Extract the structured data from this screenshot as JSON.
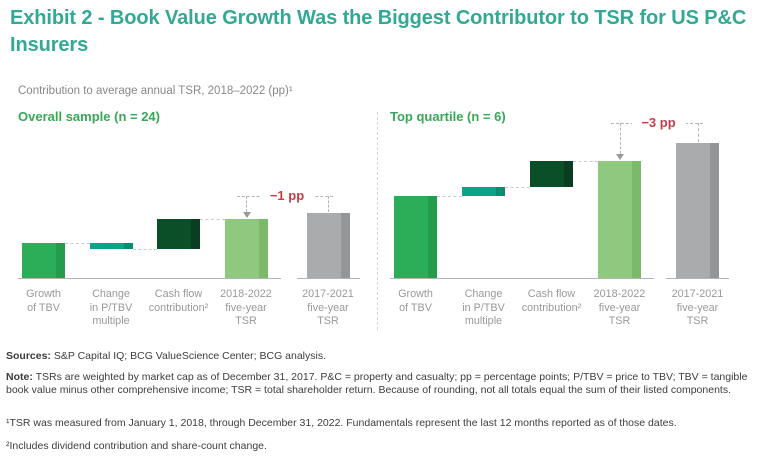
{
  "title": "Exhibit 2 - Book Value Growth Was the Biggest Contributor to TSR for US P&C\nInsurers",
  "subtitle": "Contribution to average annual TSR, 2018–2022 (pp)¹",
  "colors": {
    "title_teal": "#32a895",
    "section_green": "#36a857",
    "subtitle_gray": "#87888a",
    "axis_label_gray": "#98999b",
    "axis_line": "#b3b3b3",
    "connector_gray": "#cccccc",
    "annotation_red": "#c63d47",
    "teal_label": "#089c80",
    "value_label_white": "#ffffff",
    "footnote_gray": "#3d3d3f",
    "bar_styles": {
      "green": {
        "fill": "#2cae58",
        "edge": "#239c4c"
      },
      "teal": {
        "fill": "#0aa488",
        "edge": "#008f72"
      },
      "darkgreen": {
        "fill": "#0b4f28",
        "edge": "#093f21"
      },
      "lightgreen": {
        "fill": "#8fc980",
        "edge": "#7bb96b"
      },
      "gray": {
        "fill": "#a9abad",
        "edge": "#939597"
      }
    }
  },
  "chart_data": [
    {
      "type": "bar",
      "subtype": "waterfall",
      "title": "Overall sample (n = 24)",
      "unit": "pp",
      "ylim": [
        0,
        25
      ],
      "grid": false,
      "legend": "none",
      "categories": [
        "Growth of TBV",
        "Change in P/TBV multiple",
        "Cash flow contribution²",
        "2018-2022 five-year TSR",
        "2017-2021 five-year TSR"
      ],
      "values": [
        6,
        -1,
        5,
        10,
        11
      ],
      "bars": [
        {
          "key": "growth-of-tbv",
          "label_lines": [
            "Growth",
            "of TBV"
          ],
          "value_label": "6",
          "from": 0,
          "to": 6,
          "style": "green",
          "value_pos": "inside"
        },
        {
          "key": "change-in-p-tbv-multiple",
          "label_lines": [
            "Change",
            "in P/TBV",
            "multiple"
          ],
          "value_label": "−1",
          "from": 6,
          "to": 5,
          "style": "teal",
          "value_pos": "below"
        },
        {
          "key": "cash-flow-contribution",
          "label_lines": [
            "Cash flow",
            "contribution²"
          ],
          "value_label": "5",
          "from": 5,
          "to": 10,
          "style": "darkgreen",
          "value_pos": "inside"
        },
        {
          "key": "tsr-2018-2022",
          "label_lines": [
            "2018-2022",
            "five-year",
            "TSR"
          ],
          "value_label": "10",
          "from": 0,
          "to": 10,
          "style": "lightgreen",
          "value_pos": "inside"
        },
        {
          "key": "tsr-2017-2021",
          "label_lines": [
            "2017-2021",
            "five-year",
            "TSR"
          ],
          "value_label": "11",
          "from": 0,
          "to": 11,
          "style": "gray",
          "value_pos": "inside"
        }
      ],
      "annotation": {
        "text": "−1 pp",
        "delta_pp": -1,
        "arrow_bar_index": 3,
        "from_bar_index": 4
      }
    },
    {
      "type": "bar",
      "subtype": "waterfall",
      "title": "Top quartile (n = 6)",
      "unit": "pp",
      "ylim": [
        0,
        25
      ],
      "grid": false,
      "legend": "none",
      "categories": [
        "Growth of TBV",
        "Change in P/TBV multiple",
        "Cash flow contribution²",
        "2018-2022 five-year TSR",
        "2017-2021 five-year TSR"
      ],
      "values": [
        14,
        1,
        4,
        20,
        23
      ],
      "bars": [
        {
          "key": "growth-of-tbv",
          "label_lines": [
            "Growth",
            "of TBV"
          ],
          "value_label": "14",
          "from": 0,
          "to": 14,
          "style": "green",
          "value_pos": "inside"
        },
        {
          "key": "change-in-p-tbv-multiple",
          "label_lines": [
            "Change",
            "in P/TBV",
            "multiple"
          ],
          "value_label": "1",
          "from": 14,
          "to": 15.5,
          "style": "teal",
          "value_pos": "above"
        },
        {
          "key": "cash-flow-contribution",
          "label_lines": [
            "Cash flow",
            "contribution²"
          ],
          "value_label": "4",
          "from": 15.5,
          "to": 20,
          "style": "darkgreen",
          "value_pos": "inside"
        },
        {
          "key": "tsr-2018-2022",
          "label_lines": [
            "2018-2022",
            "five-year",
            "TSR"
          ],
          "value_label": "20",
          "from": 0,
          "to": 20,
          "style": "lightgreen",
          "value_pos": "inside"
        },
        {
          "key": "tsr-2017-2021",
          "label_lines": [
            "2017-2021",
            "five-year",
            "TSR"
          ],
          "value_label": "23",
          "from": 0,
          "to": 23,
          "style": "gray",
          "value_pos": "inside"
        }
      ],
      "annotation": {
        "text": "−3 pp",
        "delta_pp": -3,
        "arrow_bar_index": 3,
        "from_bar_index": 4
      }
    }
  ],
  "footnotes": {
    "sources_label": "Sources:",
    "sources_text": " S&P Capital IQ; BCG ValueScience Center; BCG analysis.",
    "note_label": "Note:",
    "note_text": " TSRs are weighted by market cap as of December 31, 2017. P&C = property and casualty; pp = percentage points; P/TBV = price to TBV; TBV = tangible book value minus other comprehensive income; TSR = total shareholder return. Because of rounding, not all totals equal the sum of their listed components.",
    "footnote1": "¹TSR was measured from January 1, 2018, through December 31, 2022. Fundamentals represent the last 12 months reported as of those dates.",
    "footnote2": "²Includes dividend contribution and share-count change."
  }
}
